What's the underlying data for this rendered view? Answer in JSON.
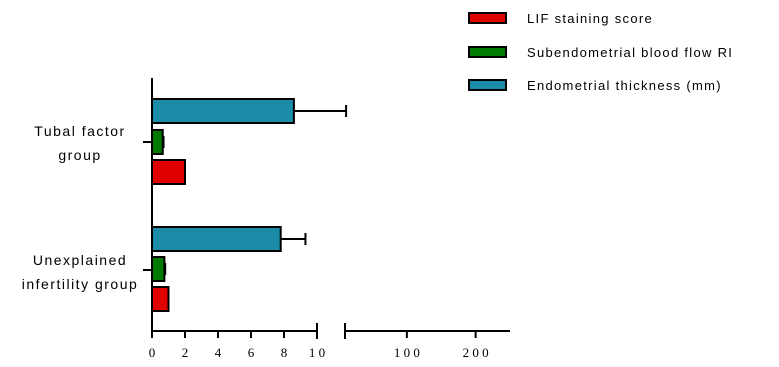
{
  "chart_data": {
    "type": "bar",
    "orientation": "horizontal",
    "title": "",
    "xlabel": "",
    "ylabel": "",
    "categories": [
      {
        "lines": [
          "Tubal factor",
          "group"
        ]
      },
      {
        "lines": [
          "Unexplained",
          "infertility group"
        ]
      }
    ],
    "series": [
      {
        "name": "LIF staining score",
        "color": "#e00000",
        "values": [
          2.0,
          1.0
        ],
        "errors": [
          0,
          0
        ]
      },
      {
        "name": "Subendometrial blood flow RI",
        "color": "#007a00",
        "values": [
          0.65,
          0.75
        ],
        "errors": [
          0.05,
          0.05
        ]
      },
      {
        "name": "Endometrial thickness (mm)",
        "color": "#1b8ca8",
        "values": [
          8.6,
          7.8
        ],
        "errors": [
          3.0,
          1.5
        ]
      }
    ],
    "x_axis": {
      "segments": [
        {
          "range": [
            0,
            10
          ],
          "ticks": [
            0,
            2,
            4,
            6,
            8,
            10
          ]
        },
        {
          "range": [
            10,
            250
          ],
          "ticks": [
            100,
            200
          ]
        }
      ],
      "tick_labels": [
        "0",
        "2",
        "4",
        "6",
        "8",
        "1 0",
        "1 0 0",
        "2 0 0"
      ],
      "broken": true
    },
    "legend": {
      "placement": "top-right"
    },
    "grid": false
  }
}
